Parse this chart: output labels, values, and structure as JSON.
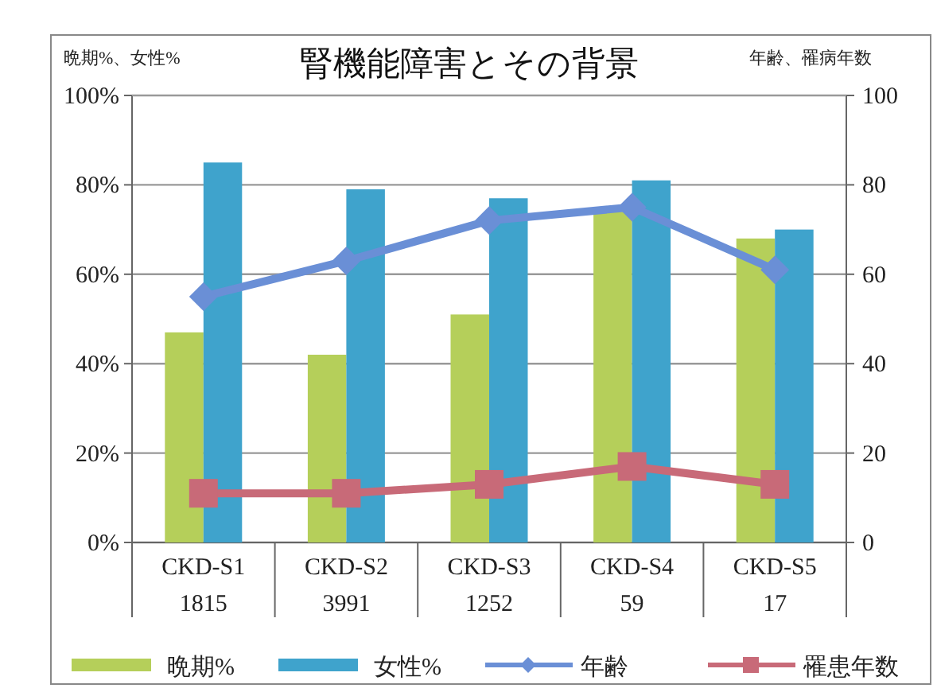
{
  "chart_data": {
    "type": "bar",
    "title": "腎機能障害とその背景",
    "ylabel": "晩期%、女性%",
    "y2label": "年齢、罹病年数",
    "categories": [
      "CKD-S1\n1815",
      "CKD-S2\n3991",
      "CKD-S3\n1252",
      "CKD-S4\n59",
      "CKD-S5\n17"
    ],
    "series": [
      {
        "name": "晩期%",
        "color": "#b5cf5a",
        "values": [
          47,
          42,
          51,
          74,
          68
        ]
      },
      {
        "name": "女性%",
        "color": "#3fa3cc",
        "values": [
          85,
          79,
          77,
          81,
          70
        ]
      },
      {
        "name": "年齢",
        "type": "line",
        "marker": "diamond",
        "color": "#6a8fd6",
        "values": [
          55,
          63,
          72,
          75,
          61
        ]
      },
      {
        "name": "罹患年数",
        "type": "line",
        "marker": "square",
        "color": "#c86a78",
        "values": [
          11,
          11,
          13,
          17,
          13
        ]
      }
    ],
    "ylim": [
      0,
      100
    ],
    "yticks": [
      {
        "value": 0,
        "label": "0%"
      },
      {
        "value": 20,
        "label": "20%"
      },
      {
        "value": 40,
        "label": "40%"
      },
      {
        "value": 60,
        "label": "60%"
      },
      {
        "value": 80,
        "label": "80%"
      },
      {
        "value": 100,
        "label": "100%"
      }
    ],
    "y2lim": [
      0,
      100
    ],
    "y2ticks": [
      0,
      20,
      40,
      60,
      80,
      100
    ],
    "grid": "y",
    "legend": "bottom"
  }
}
